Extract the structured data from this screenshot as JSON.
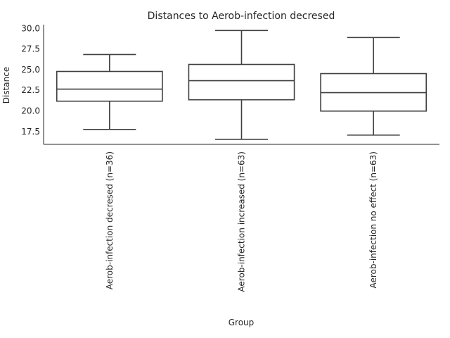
{
  "chart_data": {
    "type": "box",
    "title": "Distances to Aerob-infection decresed",
    "xlabel": "Group",
    "ylabel": "Distance",
    "ylim": [
      15.95,
      30.45
    ],
    "yticks": [
      "17.5",
      "20.0",
      "22.5",
      "25.0",
      "27.5",
      "30.0"
    ],
    "grid": false,
    "categories": [
      "Aerob-infection decresed (n=36)",
      "Aerob-infection increased (n=63)",
      "Aerob-infection no effect (n=63)"
    ],
    "boxes": [
      {
        "whisker_low": 17.76,
        "q1": 21.18,
        "median": 22.64,
        "q3": 24.78,
        "whisker_high": 26.83
      },
      {
        "whisker_low": 16.56,
        "q1": 21.35,
        "median": 23.66,
        "q3": 25.63,
        "whisker_high": 29.74
      },
      {
        "whisker_low": 17.07,
        "q1": 19.98,
        "median": 22.21,
        "q3": 24.52,
        "whisker_high": 28.89
      }
    ],
    "color": "#3f3f3f"
  }
}
